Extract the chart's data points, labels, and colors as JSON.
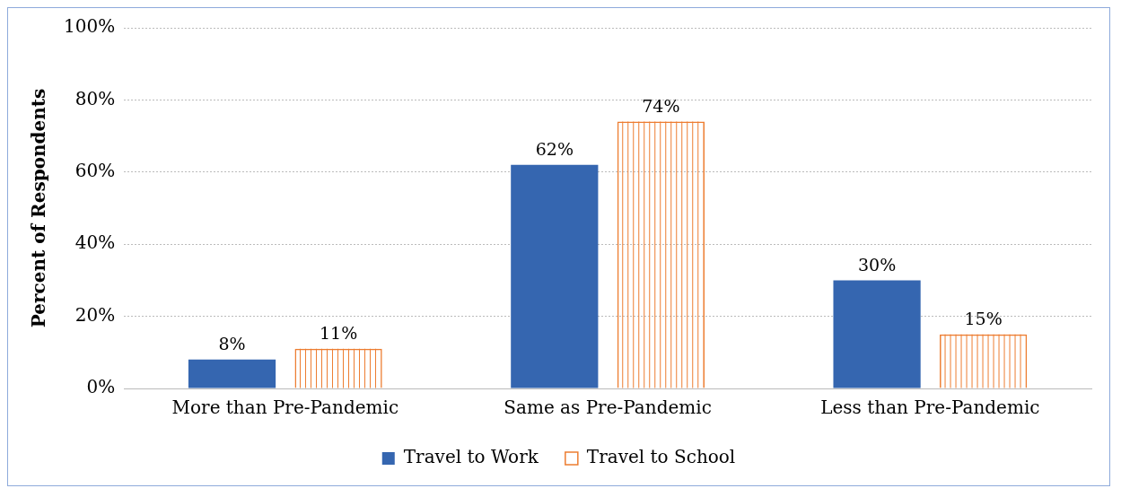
{
  "chart_data": {
    "type": "bar",
    "ylabel": "Percent of Respondents",
    "categories": [
      "More than Pre-Pandemic",
      "Same as Pre-Pandemic",
      "Less than Pre-Pandemic"
    ],
    "series": [
      {
        "name": "Travel to Work",
        "color": "#3566b0",
        "values": [
          8,
          62,
          30
        ],
        "value_labels": [
          "8%",
          "62%",
          "30%"
        ]
      },
      {
        "name": "Travel to School",
        "color": "#ed7d31",
        "values": [
          11,
          74,
          15
        ],
        "value_labels": [
          "11%",
          "74%",
          "15%"
        ]
      }
    ],
    "ylim": [
      0,
      100
    ],
    "yticks": [
      {
        "value": 0,
        "label": "0%"
      },
      {
        "value": 20,
        "label": "20%"
      },
      {
        "value": 40,
        "label": "40%"
      },
      {
        "value": 60,
        "label": "60%"
      },
      {
        "value": 80,
        "label": "80%"
      },
      {
        "value": 100,
        "label": "100%"
      }
    ],
    "grid": "y",
    "legend": "bottom"
  }
}
